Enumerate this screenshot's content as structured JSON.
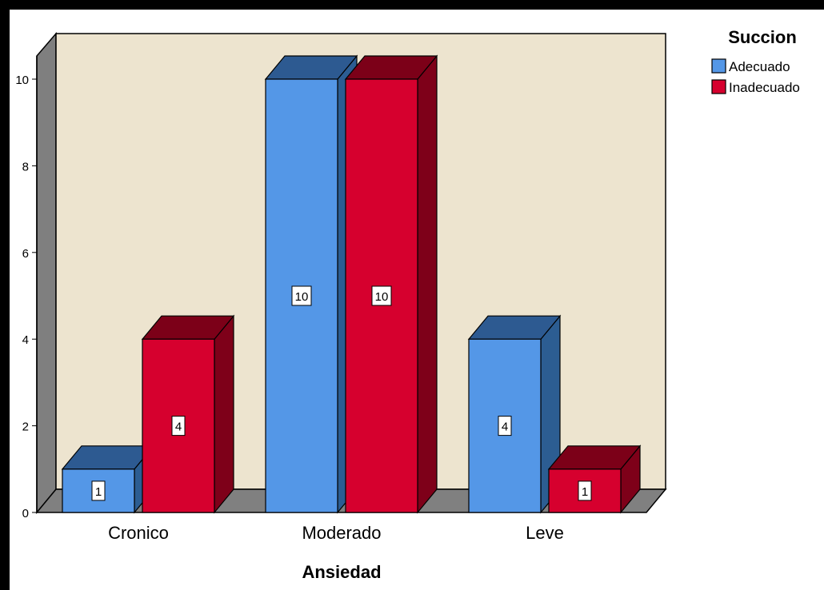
{
  "chart_data": {
    "type": "bar",
    "style": "3d-clustered",
    "title": "",
    "xlabel": "Ansiedad",
    "ylabel": "",
    "categories": [
      "Cronico",
      "Moderado",
      "Leve"
    ],
    "ylim": [
      0,
      10
    ],
    "yticks": [
      "0",
      "2",
      "4",
      "6",
      "8",
      "10"
    ],
    "legend": {
      "title": "Succion",
      "placement": "top-right"
    },
    "series": [
      {
        "name": "Adecuado",
        "values": [
          1,
          10,
          4
        ],
        "value_labels": [
          "1",
          "10",
          "4"
        ]
      },
      {
        "name": "Inadecuado",
        "values": [
          4,
          10,
          1
        ],
        "value_labels": [
          "4",
          "10",
          "1"
        ]
      }
    ],
    "grid": false
  },
  "colors": {
    "background": "#ffffff",
    "border": "#000000",
    "wall": "#ede4cf",
    "floor": "#808080",
    "side_wall": "#7f7f7f",
    "series": [
      {
        "front": "#5497e7",
        "top": "#2d5a91",
        "side": "#2c5d92"
      },
      {
        "front": "#d6002e",
        "top": "#7c0018",
        "side": "#7e0019"
      }
    ]
  }
}
